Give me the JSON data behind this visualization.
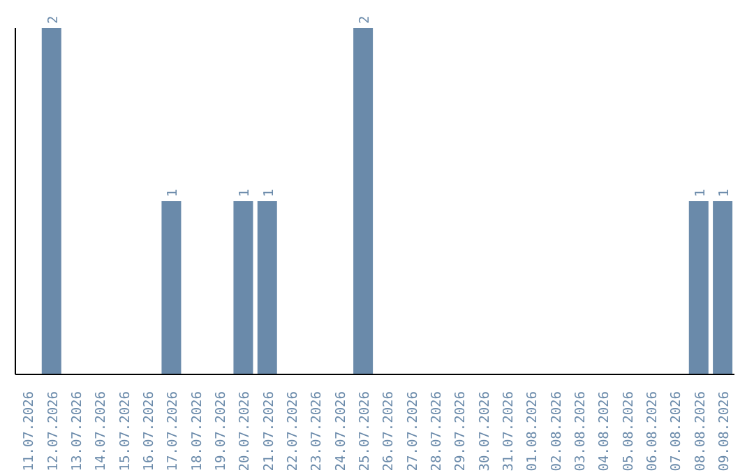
{
  "chart_data": {
    "type": "bar",
    "categories": [
      "11.07.2026",
      "12.07.2026",
      "13.07.2026",
      "14.07.2026",
      "15.07.2026",
      "16.07.2026",
      "17.07.2026",
      "18.07.2026",
      "19.07.2026",
      "20.07.2026",
      "21.07.2026",
      "22.07.2026",
      "23.07.2026",
      "24.07.2026",
      "25.07.2026",
      "26.07.2026",
      "27.07.2026",
      "28.07.2026",
      "29.07.2026",
      "30.07.2026",
      "31.07.2026",
      "01.08.2026",
      "02.08.2026",
      "03.08.2026",
      "04.08.2026",
      "05.08.2026",
      "06.08.2026",
      "07.08.2026",
      "08.08.2026",
      "09.08.2026"
    ],
    "values": [
      0,
      2,
      0,
      0,
      0,
      0,
      1,
      0,
      0,
      1,
      1,
      0,
      0,
      0,
      2,
      0,
      0,
      0,
      0,
      0,
      0,
      0,
      0,
      0,
      0,
      0,
      0,
      0,
      1,
      1
    ],
    "value_labels": [
      null,
      "2",
      null,
      null,
      null,
      null,
      "1",
      null,
      null,
      "1",
      "1",
      null,
      null,
      null,
      "2",
      null,
      null,
      null,
      null,
      null,
      null,
      null,
      null,
      null,
      null,
      null,
      null,
      null,
      "1",
      "1"
    ],
    "color": "#6a8aaa"
  }
}
